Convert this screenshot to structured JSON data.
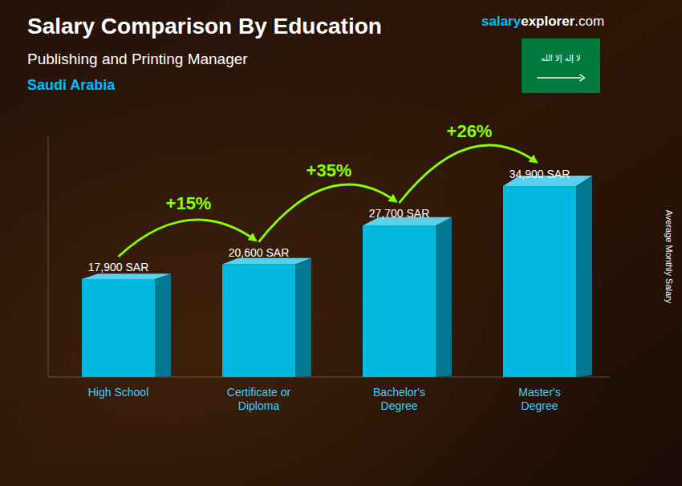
{
  "chart_data": {
    "type": "bar",
    "title": "Salary Comparison By Education",
    "subtitle": "Publishing and Printing Manager",
    "y_label": "Average Monthly Salary",
    "categories": [
      "High School",
      "Certificate or\nDiploma",
      "Bachelor's\nDegree",
      "Master's\nDegree"
    ],
    "values": [
      17900,
      20600,
      27700,
      34900
    ],
    "value_labels": [
      "17,900 SAR",
      "20,600 SAR",
      "27,700 SAR",
      "34,900 SAR"
    ],
    "data_labels": true,
    "change_labels": [
      "+15%",
      "+35%",
      "+26%"
    ],
    "annotations": [
      "Saudi Arabia",
      "salary",
      "explorer",
      ".com",
      "لا إله إلا الله"
    ],
    "color": "#00B8E0",
    "ylim": [
      0,
      44000
    ],
    "tick_labels": false,
    "grid": false
  }
}
